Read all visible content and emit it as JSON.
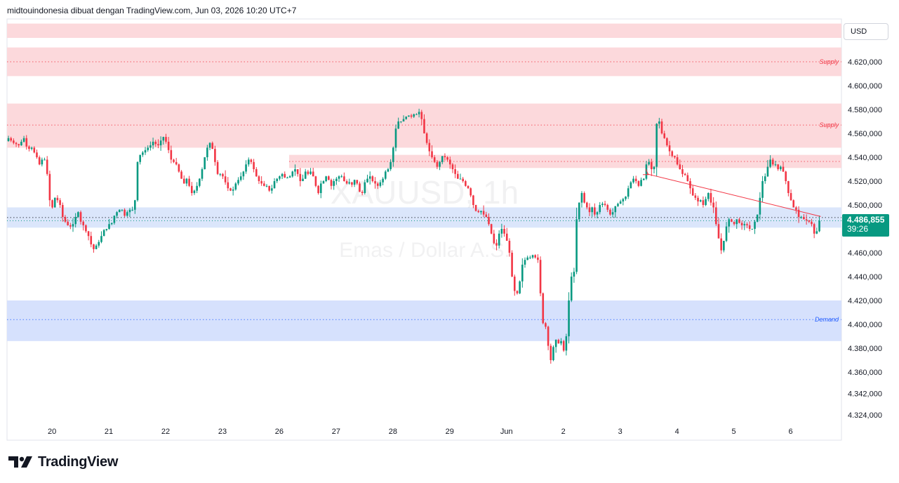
{
  "header": {
    "text": "midtouindonesia dibuat dengan TradingView.com, Jun 03, 2026 10:20 UTC+7"
  },
  "watermark": {
    "symbol": "XAUUSD, 1h",
    "description": "Emas / Dollar A.S."
  },
  "currency": "USD",
  "last_price": {
    "value": "4.486,855",
    "countdown": "39:26",
    "color": "#089981"
  },
  "logo": {
    "text": "TradingView",
    "icon": "tradingview-logo-icon"
  },
  "colors": {
    "up": "#089981",
    "down": "#f23645",
    "supply_zone": "#fcd9dc",
    "demand_zone": "#d6e1fd",
    "current_zone": "#dbe6fb",
    "supply_label": "#f23645",
    "demand_label": "#2962ff"
  },
  "chart_data": {
    "type": "candlestick",
    "title": "",
    "ylim": [
      4312000,
      4640000
    ],
    "y_ticks": [
      {
        "value": 4620000,
        "label": "4.620,000"
      },
      {
        "value": 4600000,
        "label": "4.600,000"
      },
      {
        "value": 4580000,
        "label": "4.580,000"
      },
      {
        "value": 4560000,
        "label": "4.560,000"
      },
      {
        "value": 4540000,
        "label": "4.540,000"
      },
      {
        "value": 4520000,
        "label": "4.520,000"
      },
      {
        "value": 4500000,
        "label": "4.500,000"
      },
      {
        "value": 4460000,
        "label": "4.460,000"
      },
      {
        "value": 4440000,
        "label": "4.440,000"
      },
      {
        "value": 4420000,
        "label": "4.420,000"
      },
      {
        "value": 4400000,
        "label": "4.400,000"
      },
      {
        "value": 4380000,
        "label": "4.380,000"
      },
      {
        "value": 4360000,
        "label": "4.360,000"
      },
      {
        "value": 4342000,
        "label": "4.342,000"
      },
      {
        "value": 4324000,
        "label": "4.324,000"
      }
    ],
    "x_ticks": [
      {
        "label": "20",
        "bar": 6
      },
      {
        "label": "21",
        "bar": 28
      },
      {
        "label": "22",
        "bar": 50
      },
      {
        "label": "23",
        "bar": 72
      },
      {
        "label": "26",
        "bar": 94
      },
      {
        "label": "27",
        "bar": 116
      },
      {
        "label": "28",
        "bar": 138
      },
      {
        "label": "29",
        "bar": 160
      },
      {
        "label": "Jun",
        "bar": 182
      },
      {
        "label": "2",
        "bar": 204
      },
      {
        "label": "3",
        "bar": 226
      },
      {
        "label": "4",
        "bar": 248
      },
      {
        "label": "5",
        "bar": 270
      },
      {
        "label": "6",
        "bar": 292
      }
    ],
    "zones": [
      {
        "label": "",
        "top": 4652000,
        "bottom": 4640000,
        "kind": "supply",
        "mid": null
      },
      {
        "label": "Supply",
        "top": 4632000,
        "bottom": 4608000,
        "kind": "supply",
        "mid": 4620000
      },
      {
        "label": "Supply",
        "top": 4585000,
        "bottom": 4548000,
        "kind": "supply",
        "mid": 4567000
      },
      {
        "label": "",
        "top": 4542000,
        "bottom": 4531000,
        "kind": "supply",
        "mid": 4536500
      },
      {
        "label": "",
        "top": 4498000,
        "bottom": 4481000,
        "kind": "current",
        "mid": 4489500
      },
      {
        "label": "Demand",
        "top": 4420000,
        "bottom": 4386000,
        "kind": "demand",
        "mid": 4404000
      }
    ],
    "last_price_value": 4486855,
    "closes": [
      4556000,
      4554000,
      4552000,
      4551000,
      4550000,
      4553000,
      4556000,
      4549000,
      4547000,
      4548000,
      4544000,
      4540000,
      4534000,
      4538000,
      4538000,
      4526000,
      4504000,
      4498000,
      4506000,
      4504000,
      4500000,
      4490000,
      4486000,
      4483000,
      4482000,
      4484000,
      4490000,
      4494000,
      4486000,
      4483000,
      4478000,
      4474000,
      4467000,
      4463000,
      4466000,
      4469000,
      4474000,
      4479000,
      4480000,
      4484000,
      4485000,
      4491000,
      4494000,
      4496000,
      4496000,
      4491000,
      4494000,
      4496000,
      4496000,
      4504000,
      4536000,
      4542000,
      4544000,
      4546000,
      4548000,
      4550000,
      4553000,
      4551000,
      4550000,
      4554000,
      4557000,
      4553000,
      4546000,
      4538000,
      4536000,
      4534000,
      4528000,
      4522000,
      4518000,
      4522000,
      4516000,
      4510000,
      4512000,
      4516000,
      4522000,
      4530000,
      4540000,
      4548000,
      4552000,
      4547000,
      4536000,
      4526000,
      4526000,
      4524000,
      4519000,
      4514000,
      4512000,
      4513000,
      4518000,
      4521000,
      4524000,
      4528000,
      4534000,
      4538000,
      4536000,
      4530000,
      4524000,
      4520000,
      4518000,
      4516000,
      4516000,
      4512000,
      4514000,
      4520000,
      4522000,
      4524000,
      4526000,
      4523000,
      4523000,
      4524000,
      4528000,
      4530000,
      4526000,
      4520000,
      4522000,
      4528000,
      4526000,
      4528000,
      4524000,
      4516000,
      4510000,
      4518000,
      4520000,
      4524000,
      4521000,
      4516000,
      4520000,
      4522000,
      4524000,
      4524000,
      4520000,
      4518000,
      4519000,
      4517000,
      4521000,
      4518000,
      4511000,
      4510000,
      4519000,
      4522000,
      4524000,
      4520000,
      4518000,
      4516000,
      4519000,
      4522000,
      4528000,
      4530000,
      4536000,
      4548000,
      4564000,
      4570000,
      4570000,
      4572000,
      4574000,
      4575000,
      4574000,
      4576000,
      4576000,
      4578000,
      4572000,
      4560000,
      4552000,
      4545000,
      4540000,
      4536000,
      4532000,
      4536000,
      4541000,
      4540000,
      4538000,
      4534000,
      4530000,
      4526000,
      4522000,
      4522000,
      4520000,
      4516000,
      4514000,
      4508000,
      4500000,
      4495000,
      4494000,
      4495000,
      4492000,
      4490000,
      4484000,
      4476000,
      4468000,
      4466000,
      4476000,
      4480000,
      4476000,
      4470000,
      4460000,
      4440000,
      4428000,
      4426000,
      4436000,
      4450000,
      4454000,
      4456000,
      4456000,
      4458000,
      4456000,
      4454000,
      4426000,
      4401000,
      4398000,
      4382000,
      4370000,
      4381000,
      4387000,
      4384000,
      4386000,
      4378000,
      4390000,
      4420000,
      4440000,
      4444000,
      4488000,
      4502000,
      4510000,
      4502000,
      4498000,
      4494000,
      4498000,
      4492000,
      4494000,
      4500000,
      4501000,
      4500000,
      4496000,
      4492000,
      4494000,
      4499000,
      4501000,
      4503000,
      4505000,
      4507000,
      4514000,
      4519000,
      4522000,
      4520000,
      4516000,
      4521000,
      4522000,
      4534000,
      4536000,
      4530000,
      4532000,
      4568000,
      4570000,
      4560000,
      4556000,
      4550000,
      4545000,
      4541000,
      4540000,
      4534000,
      4530000,
      4526000,
      4525000,
      4520000,
      4514000,
      4508000,
      4506000,
      4503000,
      4504000,
      4500000,
      4505000,
      4510000,
      4502000,
      4498000,
      4484000,
      4472000,
      4462000,
      4470000,
      4482000,
      4488000,
      4486000,
      4484000,
      4488000,
      4485000,
      4483000,
      4484000,
      4483000,
      4480000,
      4480000,
      4486000,
      4492000,
      4506000,
      4520000,
      4524000,
      4532000,
      4538000,
      4534000,
      4534000,
      4530000,
      4532000,
      4528000,
      4520000,
      4510000,
      4504000,
      4498000,
      4496000,
      4490000,
      4490000,
      4488000,
      4487000,
      4486000,
      4484000,
      4476000,
      4478000,
      4486855
    ]
  }
}
